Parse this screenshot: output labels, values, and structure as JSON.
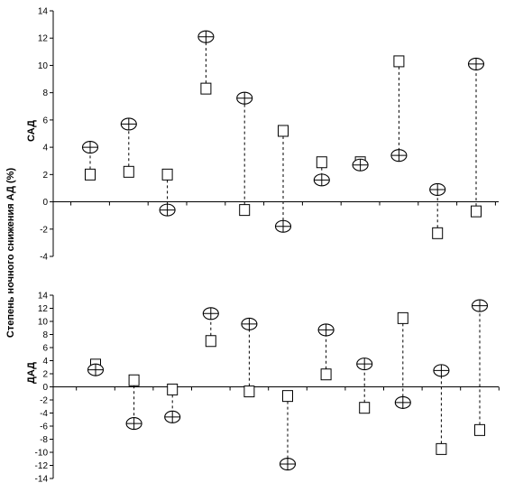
{
  "y_axis_label": "Степень ночного снижения АД (%)",
  "chart_data": [
    {
      "type": "scatter",
      "title": "",
      "panel_label": "САД",
      "ylim": [
        -4,
        14
      ],
      "yticks": [
        "-4",
        "-2",
        "0",
        "2",
        "4",
        "6",
        "8",
        "10",
        "12",
        "14"
      ],
      "x": [
        1,
        2,
        3,
        4,
        5,
        6,
        7,
        8,
        9,
        10,
        11
      ],
      "series": [
        {
          "marker": "square",
          "values": [
            2.0,
            2.2,
            2.0,
            8.3,
            -0.6,
            5.2,
            2.9,
            2.9,
            10.3,
            -2.3,
            -0.7
          ]
        },
        {
          "marker": "circle-cross",
          "values": [
            4.0,
            5.7,
            -0.6,
            12.1,
            7.6,
            -1.8,
            1.6,
            2.7,
            3.4,
            0.9,
            10.1
          ]
        }
      ],
      "connector": "dashed"
    },
    {
      "type": "scatter",
      "title": "",
      "panel_label": "ДАД",
      "ylim": [
        -14,
        14
      ],
      "yticks": [
        "-14",
        "-12",
        "-10",
        "-8",
        "-6",
        "-4",
        "-2",
        "0",
        "2",
        "4",
        "6",
        "8",
        "10",
        "12",
        "14"
      ],
      "x": [
        1,
        2,
        3,
        4,
        5,
        6,
        7,
        8,
        9,
        10,
        11
      ],
      "series": [
        {
          "marker": "square",
          "values": [
            3.4,
            1.0,
            -0.4,
            7.0,
            -0.7,
            -1.4,
            1.9,
            -3.2,
            10.5,
            -9.5,
            -6.6
          ]
        },
        {
          "marker": "circle-cross",
          "values": [
            2.6,
            -5.6,
            -4.6,
            11.2,
            9.6,
            -11.8,
            8.7,
            3.5,
            -2.4,
            2.5,
            12.4
          ]
        }
      ],
      "connector": "dashed"
    }
  ]
}
